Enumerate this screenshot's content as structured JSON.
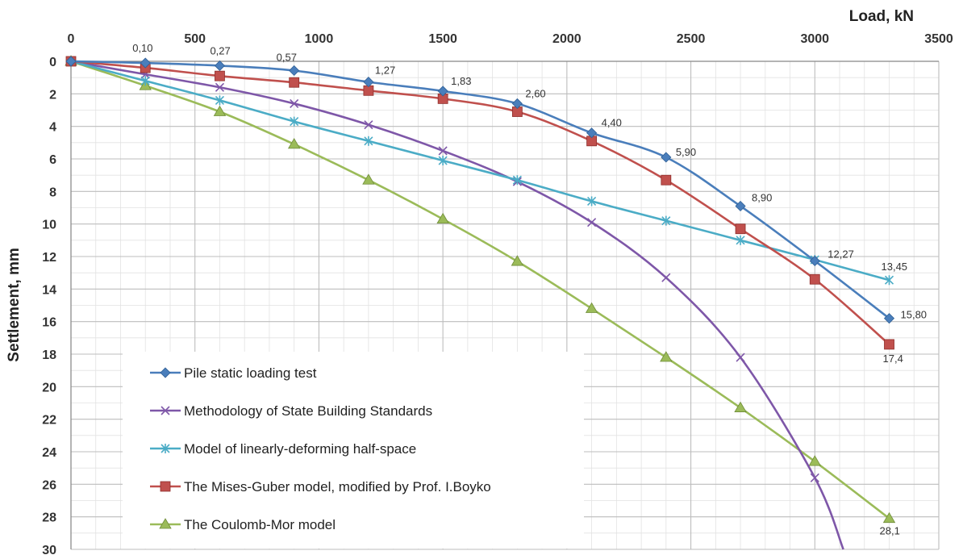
{
  "chart_data": {
    "type": "line",
    "xlabel": "Load, kN",
    "ylabel": "Settlement, mm",
    "xlim": [
      0,
      3500
    ],
    "ylim": [
      0,
      30
    ],
    "x_axis_position": "top",
    "y_inverted": true,
    "grid": true,
    "legend_position": "bottom-left",
    "x_ticks": [
      "0",
      "500",
      "1000",
      "1500",
      "2000",
      "2500",
      "3000",
      "3500"
    ],
    "y_ticks": [
      "0",
      "2",
      "4",
      "6",
      "8",
      "10",
      "12",
      "14",
      "16",
      "18",
      "20",
      "22",
      "24",
      "26",
      "28",
      "30"
    ],
    "series": [
      {
        "name": "Pile static loading test",
        "color": "#4a7ebb",
        "marker": "diamond",
        "points": [
          [
            0,
            0
          ],
          [
            300,
            0.1
          ],
          [
            600,
            0.27
          ],
          [
            900,
            0.57
          ],
          [
            1200,
            1.27
          ],
          [
            1500,
            1.83
          ],
          [
            1800,
            2.6
          ],
          [
            2100,
            4.4
          ],
          [
            2400,
            5.9
          ],
          [
            2700,
            8.9
          ],
          [
            3000,
            12.27
          ],
          [
            3300,
            15.8
          ]
        ],
        "labels": [
          "",
          "0,10",
          "0,27",
          "0,57",
          "1,27",
          "1,83",
          "2,60",
          "4,40",
          "5,90",
          "8,90",
          "12,27",
          "15,80"
        ]
      },
      {
        "name": "Methodology of State Building Standards",
        "color": "#7e57a8",
        "marker": "x",
        "points": [
          [
            0,
            0
          ],
          [
            300,
            0.8
          ],
          [
            600,
            1.6
          ],
          [
            900,
            2.6
          ],
          [
            1200,
            3.9
          ],
          [
            1500,
            5.5
          ],
          [
            1800,
            7.4
          ],
          [
            2100,
            9.9
          ],
          [
            2400,
            13.3
          ],
          [
            2700,
            18.2
          ],
          [
            3000,
            25.6
          ],
          [
            3115,
            30
          ]
        ]
      },
      {
        "name": "Model of linearly-deforming half-space",
        "color": "#4bacc6",
        "marker": "star",
        "points": [
          [
            0,
            0
          ],
          [
            300,
            1.2
          ],
          [
            600,
            2.4
          ],
          [
            900,
            3.7
          ],
          [
            1200,
            4.9
          ],
          [
            1500,
            6.1
          ],
          [
            1800,
            7.3
          ],
          [
            2100,
            8.6
          ],
          [
            2400,
            9.8
          ],
          [
            2700,
            11.0
          ],
          [
            3000,
            12.2
          ],
          [
            3300,
            13.45
          ]
        ],
        "labels": [
          "",
          "",
          "",
          "",
          "",
          "",
          "",
          "",
          "",
          "",
          "",
          "13,45"
        ]
      },
      {
        "name": "The Mises-Guber model, modified by Prof. I.Boyko",
        "color": "#c0504d",
        "marker": "square",
        "points": [
          [
            0,
            0
          ],
          [
            300,
            0.4
          ],
          [
            600,
            0.9
          ],
          [
            900,
            1.3
          ],
          [
            1200,
            1.8
          ],
          [
            1500,
            2.3
          ],
          [
            1800,
            3.1
          ],
          [
            2100,
            4.9
          ],
          [
            2400,
            7.3
          ],
          [
            2700,
            10.3
          ],
          [
            3000,
            13.4
          ],
          [
            3300,
            17.4
          ]
        ],
        "labels": [
          "",
          "",
          "",
          "",
          "",
          "",
          "",
          "",
          "",
          "",
          "",
          "17,4"
        ]
      },
      {
        "name": "The Coulomb-Mor model",
        "color": "#9bbb59",
        "marker": "triangle",
        "points": [
          [
            0,
            0
          ],
          [
            300,
            1.5
          ],
          [
            600,
            3.1
          ],
          [
            900,
            5.1
          ],
          [
            1200,
            7.3
          ],
          [
            1500,
            9.7
          ],
          [
            1800,
            12.3
          ],
          [
            2100,
            15.2
          ],
          [
            2400,
            18.2
          ],
          [
            2700,
            21.3
          ],
          [
            3000,
            24.6
          ],
          [
            3300,
            28.1
          ]
        ],
        "labels": [
          "",
          "",
          "",
          "",
          "",
          "",
          "",
          "",
          "",
          "",
          "",
          "28,1"
        ]
      }
    ]
  }
}
